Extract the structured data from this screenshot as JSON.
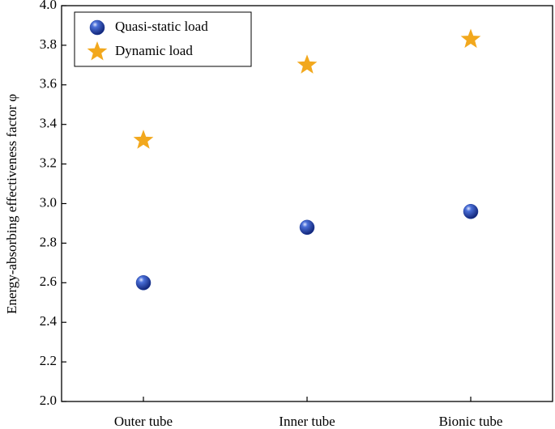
{
  "chart_data": {
    "type": "scatter",
    "y_label": "Energy-absorbing effectiveness factor φ",
    "categories": [
      "Outer tube",
      "Inner tube",
      "Bionic tube"
    ],
    "series": [
      {
        "name": "Quasi-static load",
        "color": "#1f3fa0",
        "marker": "circle",
        "values": [
          2.6,
          2.88,
          2.96
        ]
      },
      {
        "name": "Dynamic load",
        "color": "#f2a81d",
        "marker": "star",
        "values": [
          3.32,
          3.7,
          3.83
        ]
      }
    ],
    "ylim": [
      2.0,
      4.0
    ],
    "yticks": [
      {
        "value": 2,
        "label": "2.0"
      },
      2.2,
      2.4,
      2.6,
      2.8,
      {
        "value": 3,
        "label": "3.0"
      },
      3.2,
      3.4,
      3.6,
      3.8,
      {
        "value": 4,
        "label": "4.0"
      }
    ],
    "legend": "upper-left",
    "grid": false
  }
}
